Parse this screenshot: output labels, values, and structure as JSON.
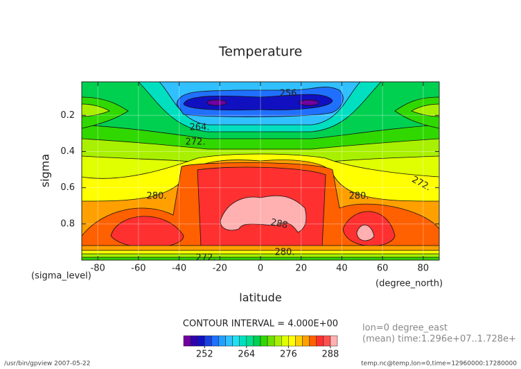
{
  "chart_data": {
    "type": "contour",
    "title": "Temperature",
    "x_label": "latitude",
    "y_label": "sigma",
    "x_unit": "(degree_north)",
    "y_unit": "(sigma_level)",
    "xlim": [
      -87.9,
      87.9
    ],
    "xticks": [
      -80,
      -60,
      -40,
      -20,
      0,
      20,
      40,
      60,
      80
    ],
    "ylim": [
      1.0,
      0.015
    ],
    "yticks": [
      0.2,
      0.4,
      0.6,
      0.8
    ],
    "grid": true,
    "contour_labels": [
      "256",
      "264.",
      "272.",
      "272.",
      "280.",
      "280.",
      "288",
      "280.",
      "272."
    ],
    "contour_interval_text": "CONTOUR INTERVAL = 4.000E+00",
    "info_lines": [
      "lon=0 degree_east",
      "(mean) time:1.296e+07..1.728e+"
    ],
    "colorbar": {
      "levels": [
        246,
        248,
        250,
        252,
        254,
        256,
        258,
        260,
        262,
        264,
        266,
        268,
        270,
        272,
        274,
        276,
        278,
        280,
        282,
        284,
        286,
        288,
        290
      ],
      "colors": [
        "#7000a0",
        "#3000b0",
        "#1010c0",
        "#1840e0",
        "#2070ff",
        "#20a0ff",
        "#30c0ff",
        "#20e0f0",
        "#00e0c0",
        "#00e090",
        "#00d050",
        "#30d800",
        "#70e000",
        "#a8f000",
        "#e0ff00",
        "#ffff00",
        "#ffd000",
        "#ffa000",
        "#ff6000",
        "#ff3030",
        "#ff5050",
        "#ffb0b0"
      ],
      "ticks": [
        252,
        264,
        276,
        288
      ]
    },
    "footer_left": "/usr/bin/gpview  2007-05-22",
    "footer_right": "temp.nc@temp,lon=0,time=12960000:17280000"
  }
}
